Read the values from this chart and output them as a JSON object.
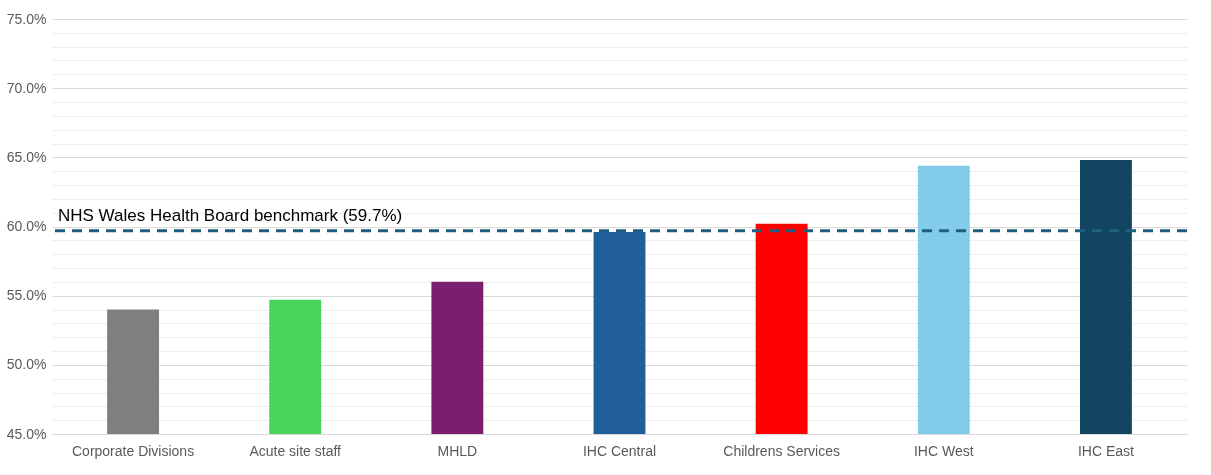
{
  "chart_data": {
    "type": "bar",
    "categories": [
      "Corporate Divisions",
      "Acute site staff",
      "MHLD",
      "IHC Central",
      "Childrens Services",
      "IHC West",
      "IHC East"
    ],
    "values": [
      54.0,
      54.7,
      56.0,
      59.6,
      60.2,
      64.4,
      64.8
    ],
    "colors": [
      "#7f7f7f",
      "#47d45a",
      "#7a1f6e",
      "#215f9a",
      "#ff0000",
      "#83cbeb",
      "#124660"
    ],
    "ylim": [
      45,
      75
    ],
    "yticks": [
      {
        "value": 45,
        "label": "45.0%"
      },
      {
        "value": 46,
        "label": null
      },
      {
        "value": 47,
        "label": null
      },
      {
        "value": 48,
        "label": null
      },
      {
        "value": 49,
        "label": null
      },
      {
        "value": 50,
        "label": "50.0%"
      },
      {
        "value": 51,
        "label": null
      },
      {
        "value": 52,
        "label": null
      },
      {
        "value": 53,
        "label": null
      },
      {
        "value": 54,
        "label": null
      },
      {
        "value": 55,
        "label": "55.0%"
      },
      {
        "value": 56,
        "label": null
      },
      {
        "value": 57,
        "label": null
      },
      {
        "value": 58,
        "label": null
      },
      {
        "value": 59,
        "label": null
      },
      {
        "value": 60,
        "label": "60.0%"
      },
      {
        "value": 61,
        "label": null
      },
      {
        "value": 62,
        "label": null
      },
      {
        "value": 63,
        "label": null
      },
      {
        "value": 64,
        "label": null
      },
      {
        "value": 65,
        "label": "65.0%"
      },
      {
        "value": 66,
        "label": null
      },
      {
        "value": 67,
        "label": null
      },
      {
        "value": 68,
        "label": null
      },
      {
        "value": 69,
        "label": null
      },
      {
        "value": 70,
        "label": "70.0%"
      },
      {
        "value": 71,
        "label": null
      },
      {
        "value": 72,
        "label": null
      },
      {
        "value": 73,
        "label": null
      },
      {
        "value": 74,
        "label": null
      },
      {
        "value": 75,
        "label": "75.0%"
      }
    ],
    "grid": "y",
    "ref_lines": [
      {
        "axis": "y",
        "value": 59.7,
        "label": "NHS Wales Health Board benchmark (59.7%)",
        "color": "#1f6080",
        "line_style": "dashed"
      }
    ]
  }
}
